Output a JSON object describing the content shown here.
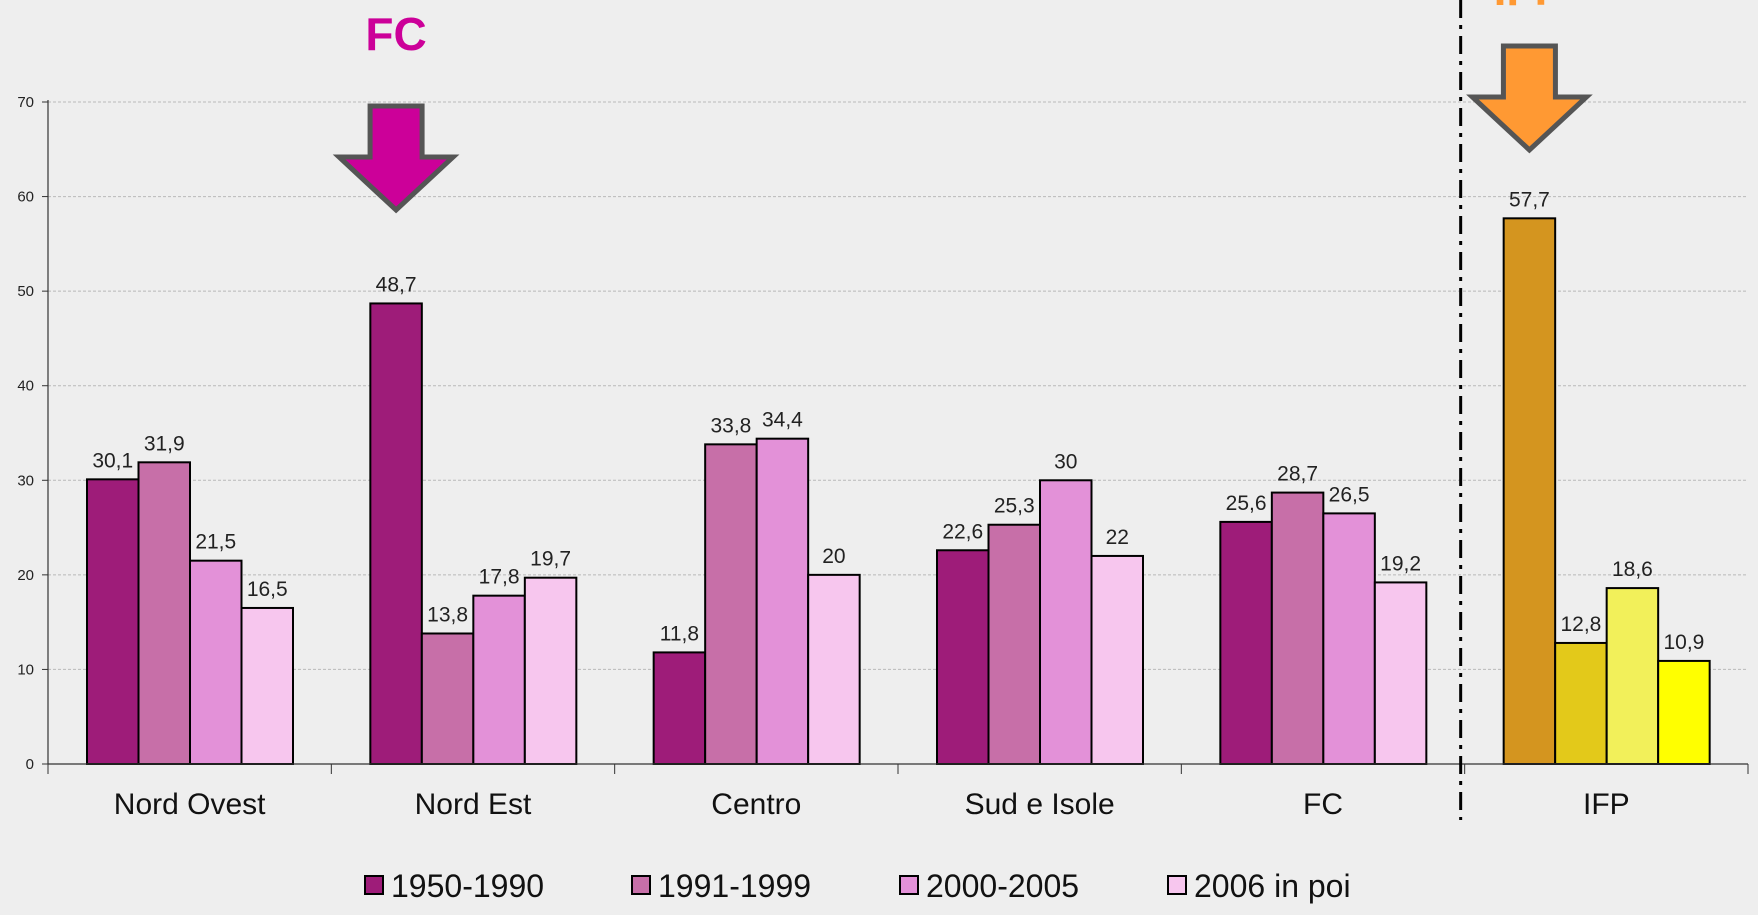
{
  "chart_data": {
    "type": "bar",
    "categories": [
      "Nord Ovest",
      "Nord Est",
      "Centro",
      "Sud e Isole",
      "FC",
      "IFP"
    ],
    "series": [
      {
        "name": "1950-1990",
        "values": [
          30.1,
          48.7,
          11.8,
          22.6,
          25.6,
          57.7
        ]
      },
      {
        "name": "1991-1999",
        "values": [
          31.9,
          13.8,
          33.8,
          25.3,
          28.7,
          12.8
        ]
      },
      {
        "name": "2000-2005",
        "values": [
          21.5,
          17.8,
          34.4,
          30,
          26.5,
          18.6
        ]
      },
      {
        "name": "2006 in poi",
        "values": [
          16.5,
          19.7,
          20,
          22,
          19.2,
          10.9
        ]
      }
    ],
    "data_labels": [
      [
        "30,1",
        "48,7",
        "11,8",
        "22,6",
        "25,6",
        "57,7"
      ],
      [
        "31,9",
        "13,8",
        "33,8",
        "25,3",
        "28,7",
        "12,8"
      ],
      [
        "21,5",
        "17,8",
        "34,4",
        "30",
        "26,5",
        "18,6"
      ],
      [
        "16,5",
        "19,7",
        "20",
        "22",
        "19,2",
        "10,9"
      ]
    ],
    "ylim": [
      0,
      70
    ],
    "yticks": [
      0,
      10,
      20,
      30,
      40,
      50,
      60,
      70
    ],
    "grid": true,
    "legend_position": "bottom",
    "colors": [
      "#9e1c79",
      "#c76fa8",
      "#e391d8",
      "#f7c6ee"
    ],
    "highlight_colors": [
      "#d4951f",
      "#e3c91a",
      "#f2f05a",
      "#ffff00"
    ],
    "annotations": [
      {
        "text": "FC",
        "color": "#cc0099",
        "arrow_color": "#cc0099",
        "target_category": "Nord Est"
      },
      {
        "text": "IFP",
        "color": "#ff9933",
        "arrow_color": "#ff9933",
        "target_category": "IFP"
      }
    ],
    "separator_before_category": "IFP"
  }
}
